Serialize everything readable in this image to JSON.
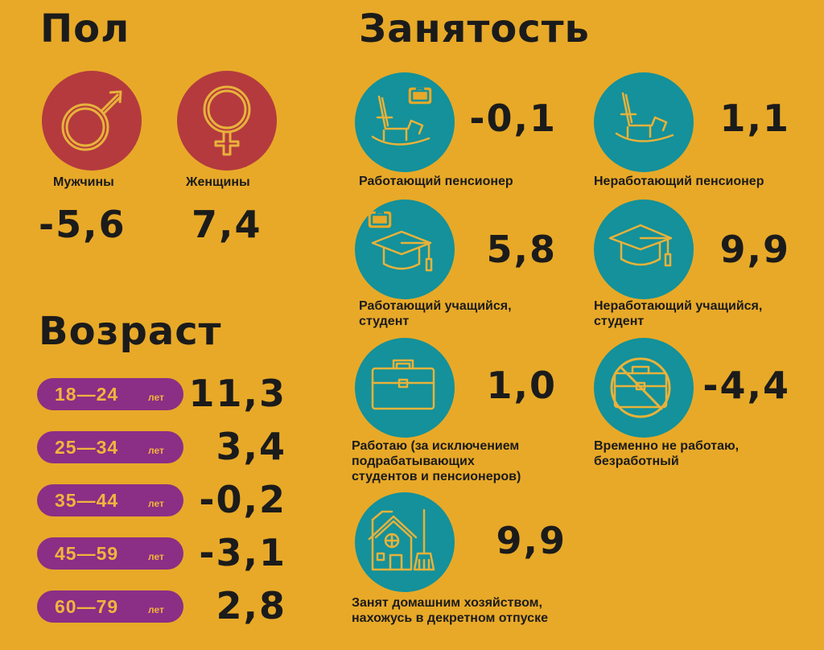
{
  "gender": {
    "title": "Пол",
    "male": {
      "label": "Мужчины",
      "value": "-5,6"
    },
    "female": {
      "label": "Женщины",
      "value": "7,4"
    }
  },
  "age": {
    "title": "Возраст",
    "unit": "лет",
    "groups": [
      {
        "range": "18—24",
        "value": "11,3"
      },
      {
        "range": "25—34",
        "value": "3,4"
      },
      {
        "range": "35—44",
        "value": "-0,2"
      },
      {
        "range": "45—59",
        "value": "-3,1"
      },
      {
        "range": "60—79",
        "value": "2,8"
      }
    ]
  },
  "employment": {
    "title": "Занятость",
    "items": [
      {
        "label_lines": [
          "Работающий пенсионер"
        ],
        "value": "-0,1",
        "icon": "rocking-chair-briefcase-icon"
      },
      {
        "label_lines": [
          "Неработающий пенсионер"
        ],
        "value": "1,1",
        "icon": "rocking-chair-icon"
      },
      {
        "label_lines": [
          "Работающий учащийся,",
          "студент"
        ],
        "value": "5,8",
        "icon": "graduation-cap-briefcase-icon"
      },
      {
        "label_lines": [
          "Неработающий учащийся,",
          "студент"
        ],
        "value": "9,9",
        "icon": "graduation-cap-icon"
      },
      {
        "label_lines": [
          "Работаю (за исключением",
          "подрабатывающих",
          "студентов и пенсионеров)"
        ],
        "value": "1,0",
        "icon": "briefcase-icon"
      },
      {
        "label_lines": [
          "Временно не работаю,",
          "безработный"
        ],
        "value": "-4,4",
        "icon": "crossed-briefcase-icon"
      },
      {
        "label_lines": [
          "Занят домашним хозяйством,",
          "нахожусь в декретном отпуске"
        ],
        "value": "9,9",
        "icon": "house-broom-icon"
      }
    ]
  },
  "colors": {
    "background": "#E8A928",
    "gender_circle": "#B43A3E",
    "employment_circle": "#14919A",
    "age_pill": "#8B2E86",
    "icon_stroke": "#E8B23A"
  }
}
